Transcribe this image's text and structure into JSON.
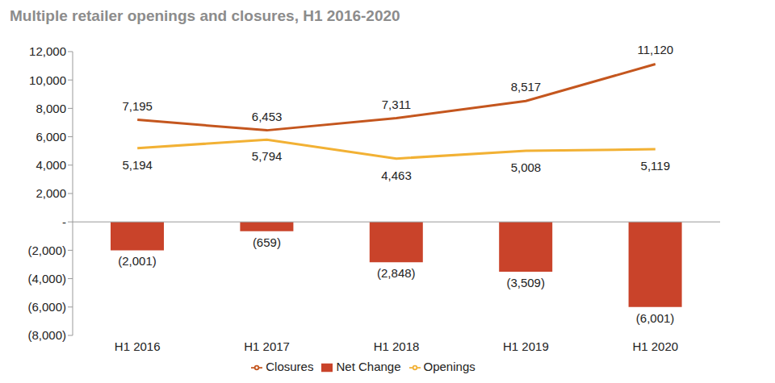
{
  "chart_data": {
    "type": "combo",
    "title": "Multiple retailer openings and closures, H1 2016-2020",
    "categories": [
      "H1 2016",
      "H1 2017",
      "H1 2018",
      "H1 2019",
      "H1 2020"
    ],
    "series": [
      {
        "name": "Net Change",
        "type": "bar",
        "color": "#C9432A",
        "values": [
          -2001,
          -659,
          -2848,
          -3509,
          -6001
        ],
        "value_labels": [
          "(2,001)",
          "(659)",
          "(2,848)",
          "(3,509)",
          "(6,001)"
        ]
      },
      {
        "name": "Openings",
        "type": "line",
        "color": "#F2B134",
        "values": [
          5194,
          5794,
          4463,
          5008,
          5119
        ],
        "value_labels": [
          "5,194",
          "5,794",
          "4,463",
          "5,008",
          "5,119"
        ]
      },
      {
        "name": "Closures",
        "type": "line",
        "color": "#C4561E",
        "values": [
          7195,
          6453,
          7311,
          8517,
          11120
        ],
        "value_labels": [
          "7,195",
          "6,453",
          "7,311",
          "8,517",
          "11,120"
        ]
      }
    ],
    "ylim": [
      -8000,
      12000
    ],
    "yticks": [
      {
        "value": -8000,
        "label": "(8,000)"
      },
      {
        "value": -6000,
        "label": "(6,000)"
      },
      {
        "value": -4000,
        "label": "(4,000)"
      },
      {
        "value": -2000,
        "label": "(2,000)"
      },
      {
        "value": 0,
        "label": "-"
      },
      {
        "value": 2000,
        "label": "2,000"
      },
      {
        "value": 4000,
        "label": "4,000"
      },
      {
        "value": 6000,
        "label": "6,000"
      },
      {
        "value": 8000,
        "label": "8,000"
      },
      {
        "value": 10000,
        "label": "10,000"
      },
      {
        "value": 12000,
        "label": "12,000"
      }
    ],
    "grid": false,
    "legend": "bottom",
    "data_labels": true
  }
}
